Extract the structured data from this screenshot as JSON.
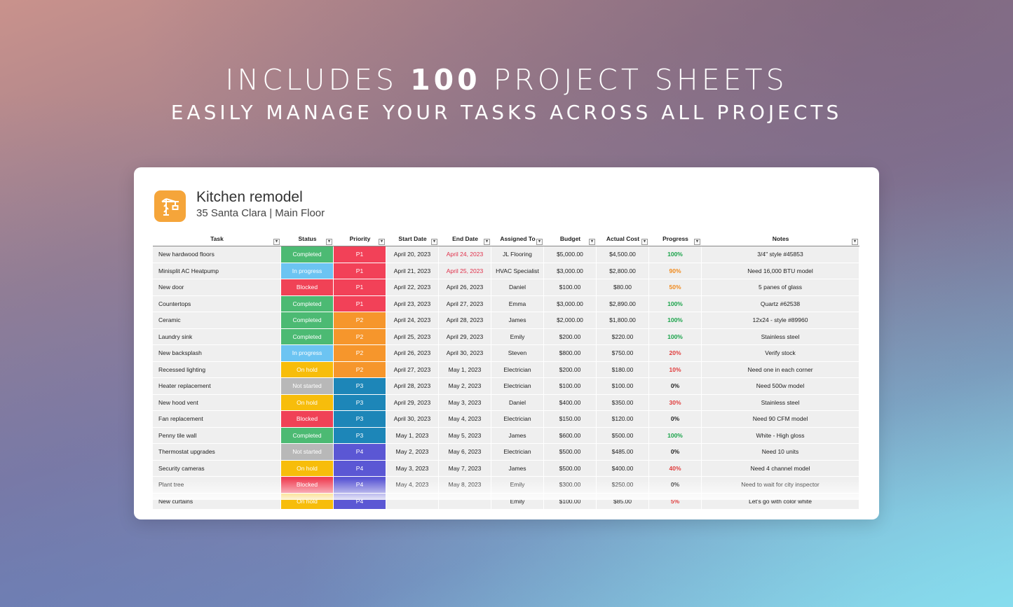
{
  "banner": {
    "headline_prefix": "INCLUDES ",
    "headline_number": "100",
    "headline_suffix": " PROJECT SHEETS",
    "subline": "EASILY MANAGE YOUR TASKS ACROSS ALL PROJECTS"
  },
  "project": {
    "icon": "crane-icon",
    "title": "Kitchen remodel",
    "subtitle": "35 Santa Clara | Main Floor"
  },
  "columns": [
    "Task",
    "Status",
    "Priority",
    "Start Date",
    "End Date",
    "Assigned To",
    "Budget",
    "Actual Cost",
    "Progress",
    "Notes"
  ],
  "status_colors": {
    "Completed": "#4cba73",
    "In progress": "#6cc4f2",
    "Blocked": "#f04256",
    "On hold": "#f7bd0b",
    "Not started": "#b8b8b8"
  },
  "priority_colors": {
    "P1": "#f24158",
    "P2": "#f6962c",
    "P3": "#1d86b8",
    "P4": "#5b57d4"
  },
  "progress_colors": {
    "100%": "#1aa34a",
    "90%": "#f08a1c",
    "50%": "#f08a1c",
    "40%": "#e03c3c",
    "30%": "#e03c3c",
    "20%": "#e03c3c",
    "10%": "#e03c3c",
    "5%": "#e03c3c",
    "0%": "#222222"
  },
  "overdue_color": "#e0304a",
  "rows": [
    {
      "task": "New hardwood floors",
      "status": "Completed",
      "priority": "P1",
      "start": "April 20, 2023",
      "end": "April 24, 2023",
      "end_overdue": true,
      "assigned": "JL Flooring",
      "budget": "$5,000.00",
      "actual": "$4,500.00",
      "progress": "100%",
      "notes": "3/4\" style #45853"
    },
    {
      "task": "Minisplit AC Heatpump",
      "status": "In progress",
      "priority": "P1",
      "start": "April 21, 2023",
      "end": "April 25, 2023",
      "end_overdue": true,
      "assigned": "HVAC Specialist",
      "budget": "$3,000.00",
      "actual": "$2,800.00",
      "progress": "90%",
      "notes": "Need 16,000 BTU model"
    },
    {
      "task": "New door",
      "status": "Blocked",
      "priority": "P1",
      "start": "April 22, 2023",
      "end": "April 26, 2023",
      "end_overdue": false,
      "assigned": "Daniel",
      "budget": "$100.00",
      "actual": "$80.00",
      "progress": "50%",
      "notes": "5 panes of glass"
    },
    {
      "task": "Countertops",
      "status": "Completed",
      "priority": "P1",
      "start": "April 23, 2023",
      "end": "April 27, 2023",
      "end_overdue": false,
      "assigned": "Emma",
      "budget": "$3,000.00",
      "actual": "$2,890.00",
      "progress": "100%",
      "notes": "Quartz #62538"
    },
    {
      "task": "Ceramic",
      "status": "Completed",
      "priority": "P2",
      "start": "April 24, 2023",
      "end": "April 28, 2023",
      "end_overdue": false,
      "assigned": "James",
      "budget": "$2,000.00",
      "actual": "$1,800.00",
      "progress": "100%",
      "notes": "12x24 - style #89960"
    },
    {
      "task": "Laundry sink",
      "status": "Completed",
      "priority": "P2",
      "start": "April 25, 2023",
      "end": "April 29, 2023",
      "end_overdue": false,
      "assigned": "Emily",
      "budget": "$200.00",
      "actual": "$220.00",
      "progress": "100%",
      "notes": "Stainless steel"
    },
    {
      "task": "New backsplash",
      "status": "In progress",
      "priority": "P2",
      "start": "April 26, 2023",
      "end": "April 30, 2023",
      "end_overdue": false,
      "assigned": "Steven",
      "budget": "$800.00",
      "actual": "$750.00",
      "progress": "20%",
      "notes": "Verify stock"
    },
    {
      "task": "Recessed lighting",
      "status": "On hold",
      "priority": "P2",
      "start": "April 27, 2023",
      "end": "May 1, 2023",
      "end_overdue": false,
      "assigned": "Electrician",
      "budget": "$200.00",
      "actual": "$180.00",
      "progress": "10%",
      "notes": "Need one in each corner"
    },
    {
      "task": "Heater replacement",
      "status": "Not started",
      "priority": "P3",
      "start": "April 28, 2023",
      "end": "May 2, 2023",
      "end_overdue": false,
      "assigned": "Electrician",
      "budget": "$100.00",
      "actual": "$100.00",
      "progress": "0%",
      "notes": "Need 500w model"
    },
    {
      "task": "New hood vent",
      "status": "On hold",
      "priority": "P3",
      "start": "April 29, 2023",
      "end": "May 3, 2023",
      "end_overdue": false,
      "assigned": "Daniel",
      "budget": "$400.00",
      "actual": "$350.00",
      "progress": "30%",
      "notes": "Stainless steel"
    },
    {
      "task": "Fan replacement",
      "status": "Blocked",
      "priority": "P3",
      "start": "April 30, 2023",
      "end": "May 4, 2023",
      "end_overdue": false,
      "assigned": "Electrician",
      "budget": "$150.00",
      "actual": "$120.00",
      "progress": "0%",
      "notes": "Need 90 CFM model"
    },
    {
      "task": "Penny tile wall",
      "status": "Completed",
      "priority": "P3",
      "start": "May 1, 2023",
      "end": "May 5, 2023",
      "end_overdue": false,
      "assigned": "James",
      "budget": "$600.00",
      "actual": "$500.00",
      "progress": "100%",
      "notes": "White - High gloss"
    },
    {
      "task": "Thermostat upgrades",
      "status": "Not started",
      "priority": "P4",
      "start": "May 2, 2023",
      "end": "May 6, 2023",
      "end_overdue": false,
      "assigned": "Electrician",
      "budget": "$500.00",
      "actual": "$485.00",
      "progress": "0%",
      "notes": "Need 10 units"
    },
    {
      "task": "Security cameras",
      "status": "On hold",
      "priority": "P4",
      "start": "May 3, 2023",
      "end": "May 7, 2023",
      "end_overdue": false,
      "assigned": "James",
      "budget": "$500.00",
      "actual": "$400.00",
      "progress": "40%",
      "notes": "Need 4 channel model"
    },
    {
      "task": "Plant tree",
      "status": "Blocked",
      "priority": "P4",
      "start": "May 4, 2023",
      "end": "May 8, 2023",
      "end_overdue": false,
      "assigned": "Emily",
      "budget": "$300.00",
      "actual": "$250.00",
      "progress": "0%",
      "notes": "Need to wait for city inspector"
    },
    {
      "task": "New curtains",
      "status": "On hold",
      "priority": "P4",
      "start": "",
      "end": "",
      "end_overdue": false,
      "assigned": "Emily",
      "budget": "$100.00",
      "actual": "$85.00",
      "progress": "5%",
      "notes": "Let's go with color white"
    }
  ]
}
